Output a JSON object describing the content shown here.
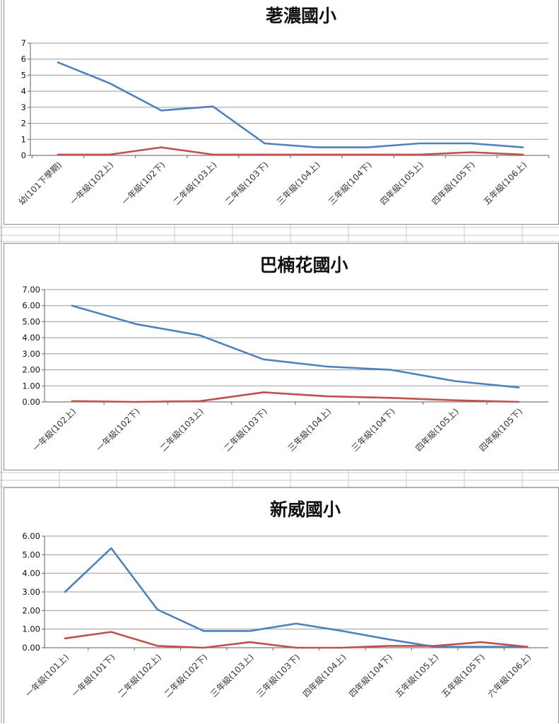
{
  "chart_data": [
    {
      "type": "line",
      "title": "荖濃國小",
      "categories": [
        "幼(101下學期)",
        "一年級(102上)",
        "一年級(102下)",
        "二年級(103上)",
        "二年級(103下)",
        "三年級(104上)",
        "三年級(104下)",
        "四年級(105上)",
        "四年級(105下)",
        "五年級(106上)"
      ],
      "series": [
        {
          "values": [
            5.8,
            4.5,
            2.8,
            3.05,
            0.75,
            0.5,
            0.5,
            0.75,
            0.75,
            0.5
          ],
          "color": "#4f81bd"
        },
        {
          "values": [
            0.05,
            0.05,
            0.5,
            0.05,
            0.05,
            0.05,
            0.05,
            0.05,
            0.2,
            0.05
          ],
          "color": "#c0504d"
        }
      ],
      "y_ticks": [
        "0",
        "1",
        "2",
        "3",
        "4",
        "5",
        "6",
        "7"
      ],
      "ylim": [
        0,
        7
      ],
      "grid": true,
      "legend": "none"
    },
    {
      "type": "line",
      "title": "巴楠花國小",
      "categories": [
        "一年級(102上)",
        "一年級(102下)",
        "二年級(103上)",
        "二年級(103下)",
        "三年級(104上)",
        "三年級(104下)",
        "四年級(105上)",
        "四年級(105下)"
      ],
      "series": [
        {
          "values": [
            6.0,
            4.85,
            4.15,
            2.65,
            2.2,
            2.0,
            1.3,
            0.9
          ],
          "color": "#4f81bd"
        },
        {
          "values": [
            0.05,
            0.0,
            0.05,
            0.6,
            0.35,
            0.25,
            0.1,
            0.0
          ],
          "color": "#c0504d"
        }
      ],
      "y_ticks": [
        "0.00",
        "1.00",
        "2.00",
        "3.00",
        "4.00",
        "5.00",
        "6.00",
        "7.00"
      ],
      "ylim": [
        0,
        7
      ],
      "grid": true,
      "legend": "none"
    },
    {
      "type": "line",
      "title": "新威國小",
      "categories": [
        "一年級(101上)",
        "一年級(101下)",
        "二年級(102上)",
        "二年級(102下)",
        "三年級(103上)",
        "三年級(103下)",
        "四年級(104上)",
        "四年級(104下)",
        "五年級(105上)",
        "五年級(105下)",
        "六年級(106上)"
      ],
      "series": [
        {
          "values": [
            3.0,
            5.35,
            2.05,
            0.9,
            0.9,
            1.3,
            0.9,
            0.45,
            0.05,
            0.05,
            0.05
          ],
          "color": "#4f81bd"
        },
        {
          "values": [
            0.5,
            0.85,
            0.1,
            0.0,
            0.3,
            0.0,
            0.0,
            0.1,
            0.1,
            0.3,
            0.05
          ],
          "color": "#c0504d"
        }
      ],
      "y_ticks": [
        "0.00",
        "1.00",
        "2.00",
        "3.00",
        "4.00",
        "5.00",
        "6.00"
      ],
      "ylim": [
        0,
        6
      ],
      "grid": true,
      "legend": "none"
    }
  ]
}
